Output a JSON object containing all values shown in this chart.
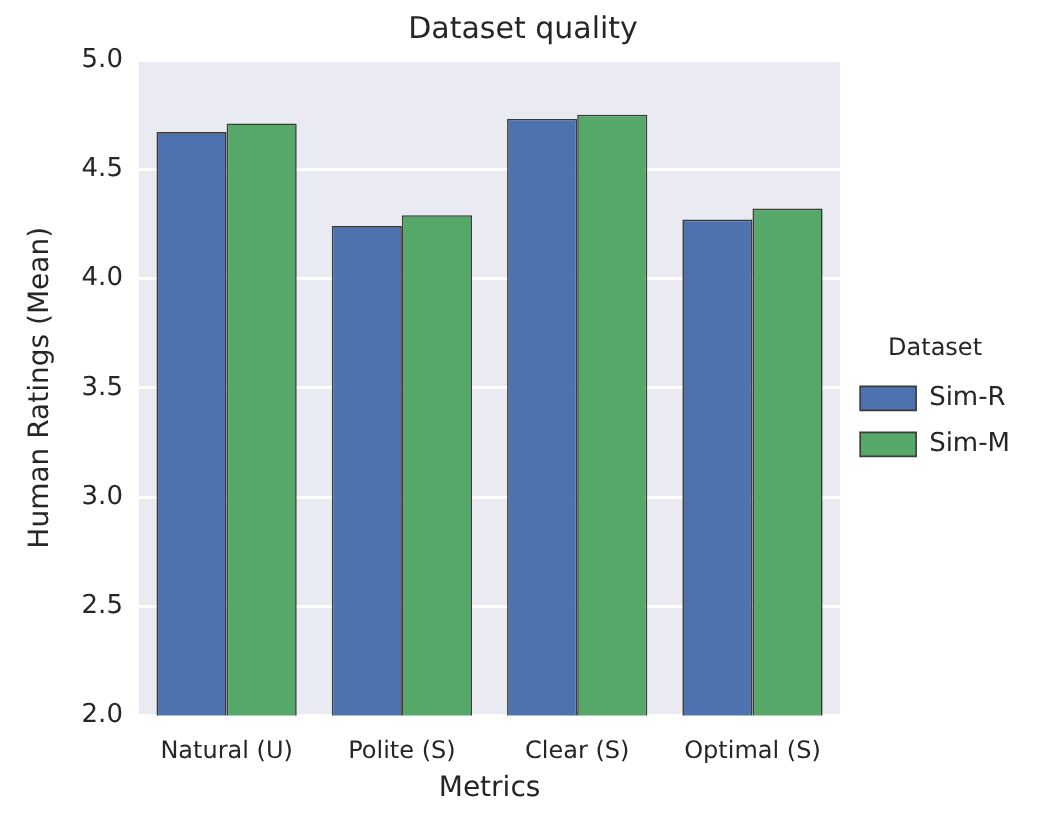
{
  "chart_data": {
    "type": "bar",
    "title": "Dataset quality",
    "xlabel": "Metrics",
    "ylabel": "Human Ratings (Mean)",
    "legend_title": "Dataset",
    "categories": [
      "Natural (U)",
      "Polite (S)",
      "Clear (S)",
      "Optimal (S)"
    ],
    "series": [
      {
        "name": "Sim-R",
        "color": "#4c72b0",
        "values": [
          4.67,
          4.24,
          4.73,
          4.27
        ]
      },
      {
        "name": "Sim-M",
        "color": "#55a868",
        "values": [
          4.71,
          4.29,
          4.75,
          4.32
        ]
      }
    ],
    "ylim": [
      2.0,
      5.0
    ],
    "yticks": [
      {
        "value": 2.0,
        "label": "2.0"
      },
      {
        "value": 2.5,
        "label": "2.5"
      },
      {
        "value": 3.0,
        "label": "3.0"
      },
      {
        "value": 3.5,
        "label": "3.5"
      },
      {
        "value": 4.0,
        "label": "4.0"
      },
      {
        "value": 4.5,
        "label": "4.5"
      },
      {
        "value": 5.0,
        "label": "5.0"
      }
    ],
    "grid": "y",
    "legend": "right"
  }
}
